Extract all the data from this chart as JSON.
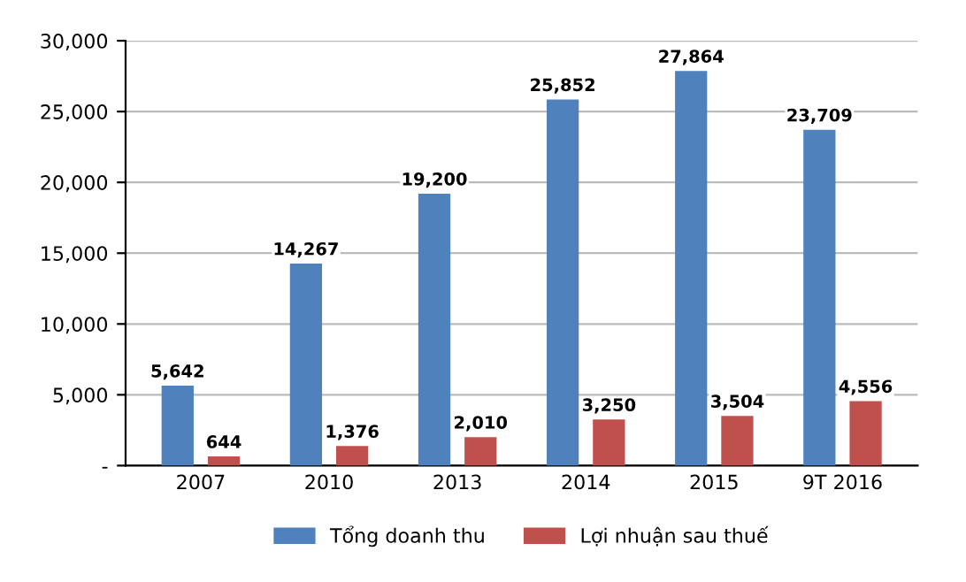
{
  "chart_data": {
    "type": "bar",
    "categories": [
      "2007",
      "2010",
      "2013",
      "2014",
      "2015",
      "9T 2016"
    ],
    "series": [
      {
        "name": "Tổng doanh thu",
        "color": "#4f81bd",
        "values": [
          5642,
          14267,
          19200,
          25852,
          27864,
          23709
        ],
        "value_labels": [
          "5,642",
          "14,267",
          "19,200",
          "25,852",
          "27,864",
          "23,709"
        ]
      },
      {
        "name": "Lợi nhuận sau thuế",
        "color": "#c0504d",
        "values": [
          644,
          1376,
          2010,
          3250,
          3504,
          4556
        ],
        "value_labels": [
          "644",
          "1,376",
          "2,010",
          "3,250",
          "3,504",
          "4,556"
        ]
      }
    ],
    "ylim": [
      0,
      30000
    ],
    "yticks": [
      {
        "value": 0,
        "label": "-"
      },
      {
        "value": 5000,
        "label": "5,000"
      },
      {
        "value": 10000,
        "label": "10,000"
      },
      {
        "value": 15000,
        "label": "15,000"
      },
      {
        "value": 20000,
        "label": "20,000"
      },
      {
        "value": 25000,
        "label": "25,000"
      },
      {
        "value": 30000,
        "label": "30,000"
      }
    ],
    "grid": "y",
    "legend": "bottom"
  }
}
